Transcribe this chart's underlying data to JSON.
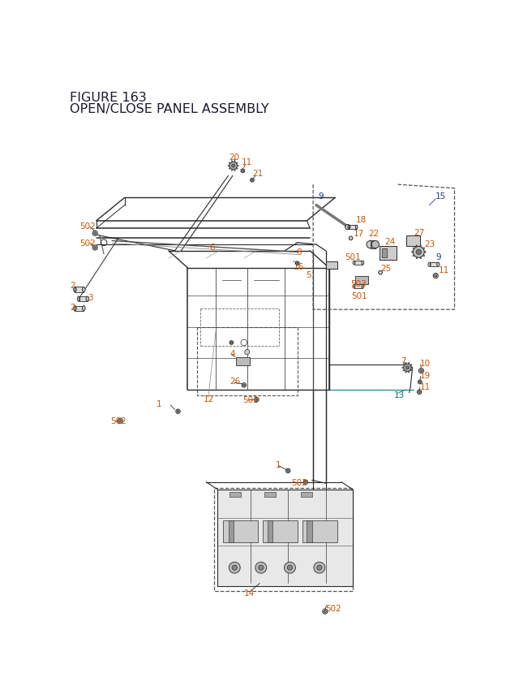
{
  "title_line1": "FIGURE 163",
  "title_line2": "OPEN/CLOSE PANEL ASSEMBLY",
  "title_color": "#1a1a2e",
  "title_fontsize": 11.5,
  "bg_color": "#ffffff",
  "label_color_orange": "#cc5500",
  "label_color_blue": "#1a3a8a",
  "label_color_teal": "#007070",
  "diagram_color": "#2a2a2a",
  "dashed_box_color": "#555555",
  "label_fontsize": 7.5
}
